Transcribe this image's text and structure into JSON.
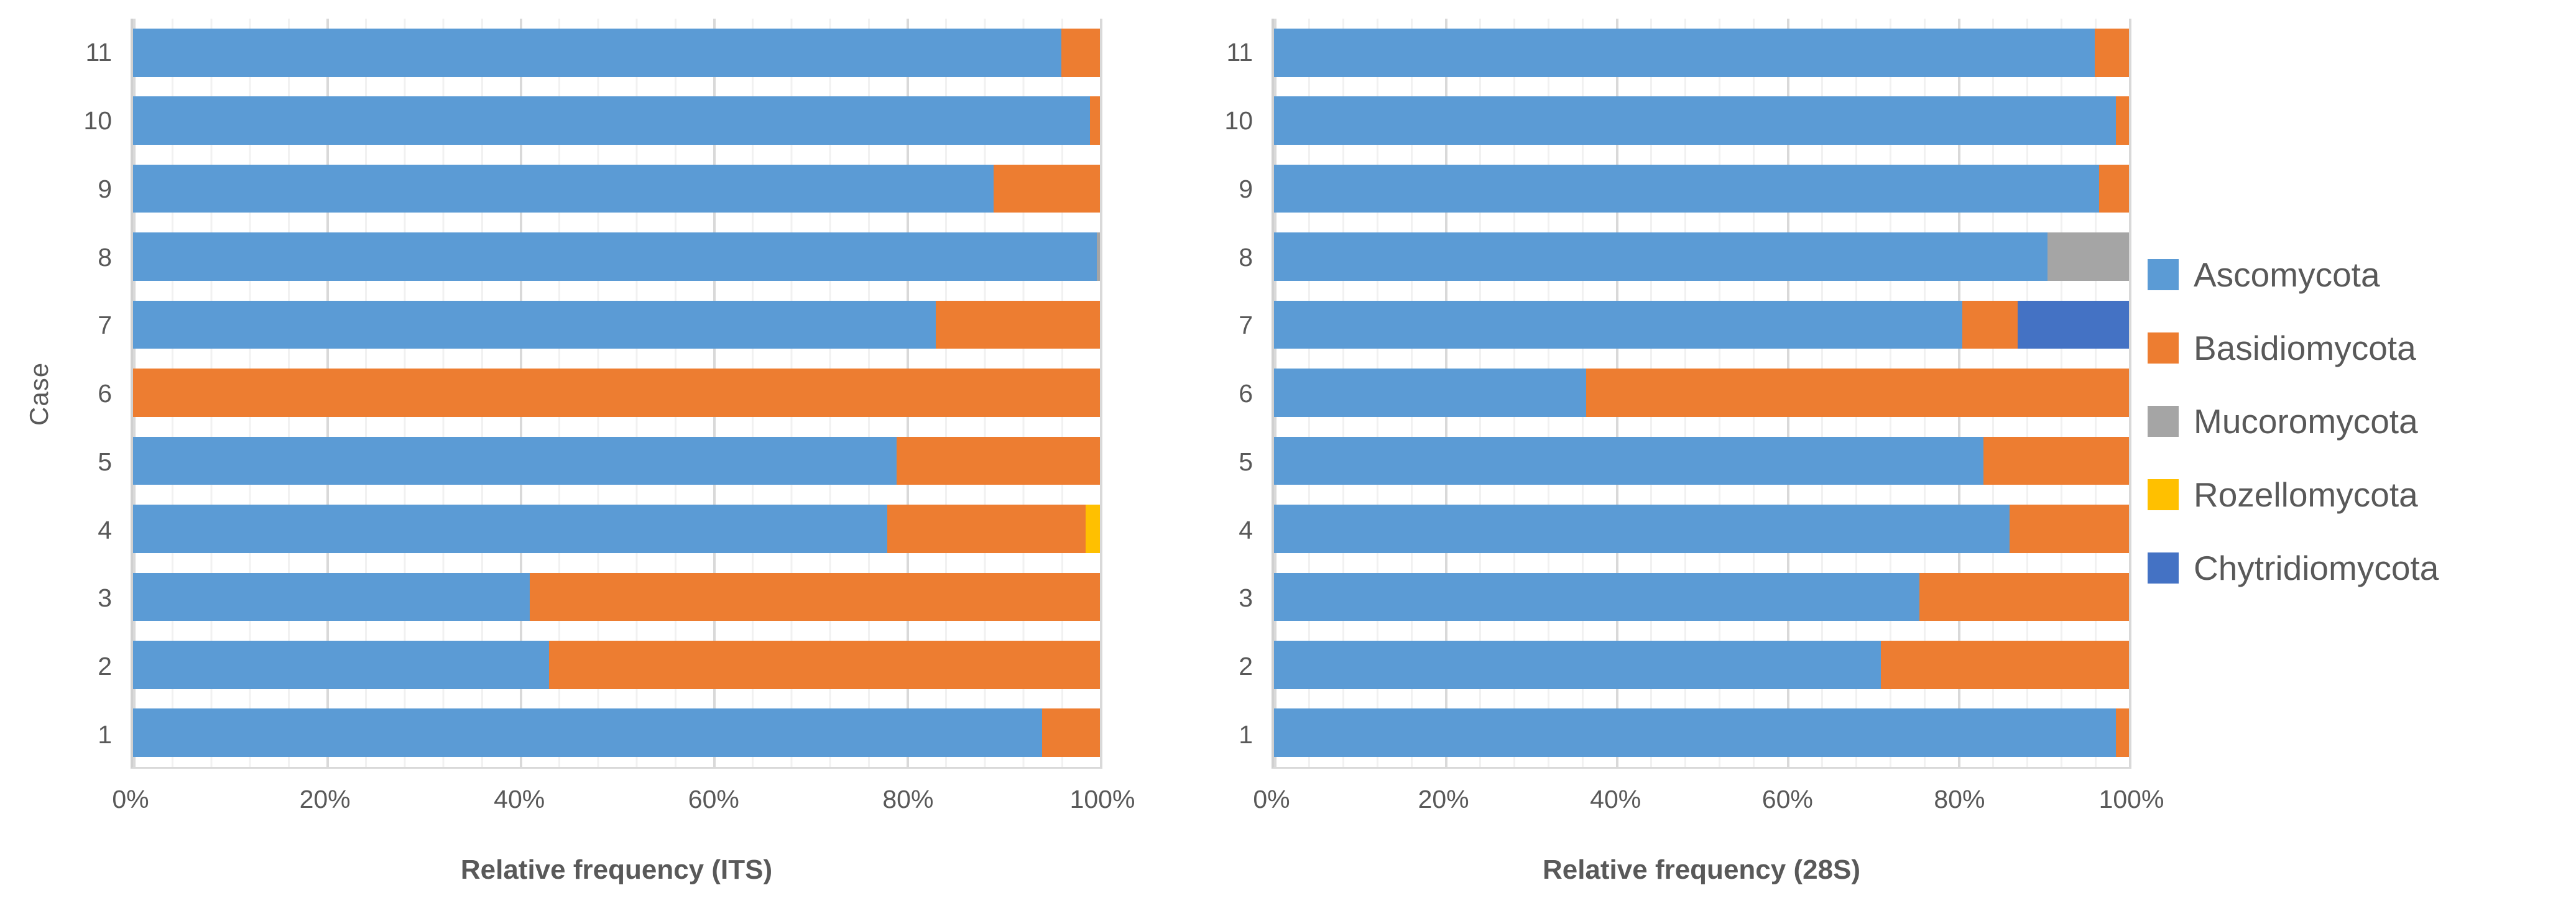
{
  "figure": {
    "legend": {
      "items": [
        {
          "label": "Ascomycota",
          "color": "#5B9BD5"
        },
        {
          "label": "Basidiomycota",
          "color": "#ED7D31"
        },
        {
          "label": "Mucoromycota",
          "color": "#A5A5A5"
        },
        {
          "label": "Rozellomycota",
          "color": "#FFC000"
        },
        {
          "label": "Chytridiomycota",
          "color": "#4472C4"
        }
      ]
    },
    "text_color": "#595959",
    "gridline_major_color": "#D9D9D9",
    "gridline_minor_color": "#F1F1F1"
  },
  "chart_data": [
    {
      "type": "bar",
      "orientation": "horizontal-stacked",
      "title": "",
      "xlabel": "Relative frequency (ITS)",
      "ylabel": "Case",
      "categories": [
        1,
        2,
        3,
        4,
        5,
        6,
        7,
        8,
        9,
        10,
        11
      ],
      "xticks": [
        "0%",
        "20%",
        "40%",
        "60%",
        "80%",
        "100%"
      ],
      "xlim": [
        0,
        100
      ],
      "grid": {
        "minor_step_pct": 4,
        "major_step_pct": 20
      },
      "legend_position": "right-of-figure",
      "series": [
        {
          "name": "Ascomycota",
          "color": "#5B9BD5",
          "values": [
            94,
            43,
            41,
            78,
            79,
            0,
            83,
            99.7,
            89,
            99,
            96
          ]
        },
        {
          "name": "Basidiomycota",
          "color": "#ED7D31",
          "values": [
            6,
            57,
            59,
            20.5,
            21,
            100,
            17,
            0,
            11,
            1,
            4
          ]
        },
        {
          "name": "Mucoromycota",
          "color": "#A5A5A5",
          "values": [
            0,
            0,
            0,
            0,
            0,
            0,
            0,
            0.3,
            0,
            0,
            0
          ]
        },
        {
          "name": "Rozellomycota",
          "color": "#FFC000",
          "values": [
            0,
            0,
            0,
            1.5,
            0,
            0,
            0,
            0,
            0,
            0,
            0
          ]
        },
        {
          "name": "Chytridiomycota",
          "color": "#4472C4",
          "values": [
            0,
            0,
            0,
            0,
            0,
            0,
            0,
            0,
            0,
            0,
            0
          ]
        }
      ]
    },
    {
      "type": "bar",
      "orientation": "horizontal-stacked",
      "title": "",
      "xlabel": "Relative frequency (28S)",
      "ylabel": "",
      "categories": [
        1,
        2,
        3,
        4,
        5,
        6,
        7,
        8,
        9,
        10,
        11
      ],
      "xticks": [
        "0%",
        "20%",
        "40%",
        "60%",
        "80%",
        "100%"
      ],
      "xlim": [
        0,
        100
      ],
      "grid": {
        "minor_step_pct": 4,
        "major_step_pct": 20
      },
      "legend_position": "right-of-figure",
      "series": [
        {
          "name": "Ascomycota",
          "color": "#5B9BD5",
          "values": [
            98.5,
            71,
            75.5,
            86,
            83,
            36.5,
            80.5,
            90.5,
            96.5,
            98.5,
            96
          ]
        },
        {
          "name": "Basidiomycota",
          "color": "#ED7D31",
          "values": [
            1.5,
            29,
            24.5,
            14,
            17,
            63.5,
            6.5,
            0,
            3.5,
            1.5,
            4
          ]
        },
        {
          "name": "Mucoromycota",
          "color": "#A5A5A5",
          "values": [
            0,
            0,
            0,
            0,
            0,
            0,
            0,
            9.5,
            0,
            0,
            0
          ]
        },
        {
          "name": "Rozellomycota",
          "color": "#FFC000",
          "values": [
            0,
            0,
            0,
            0,
            0,
            0,
            0,
            0,
            0,
            0,
            0
          ]
        },
        {
          "name": "Chytridiomycota",
          "color": "#4472C4",
          "values": [
            0,
            0,
            0,
            0,
            0,
            0,
            13,
            0,
            0,
            0,
            0
          ]
        }
      ]
    }
  ]
}
